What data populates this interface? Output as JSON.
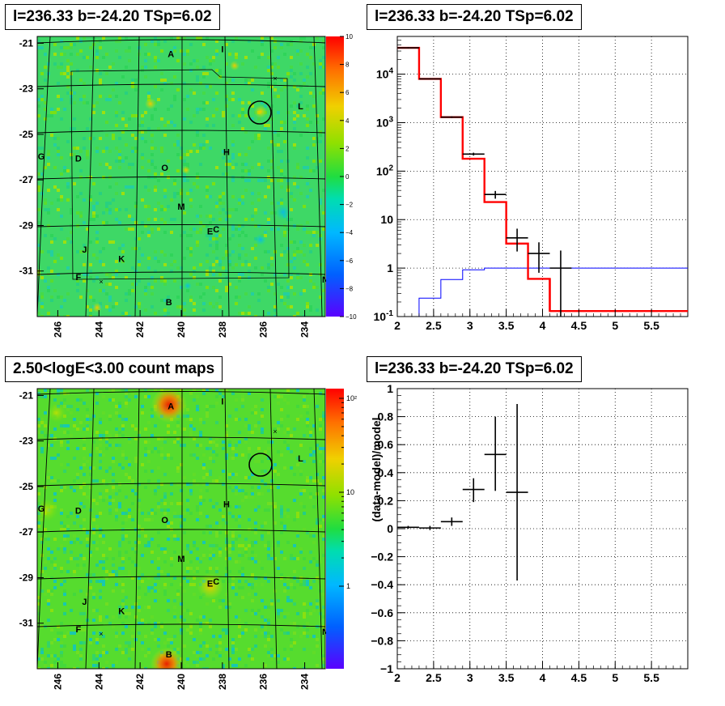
{
  "panels": {
    "tl_title": "l=236.33 b=-24.20 TSp=6.02",
    "tr_title": "l=236.33 b=-24.20 TSp=6.02",
    "bl_title": "2.50<logE<3.00 count maps",
    "br_title": "l=236.33 b=-24.20 TSp=6.02"
  },
  "maps": {
    "x_ticks": [
      "246",
      "244",
      "242",
      "240",
      "238",
      "236",
      "234"
    ],
    "y_ticks": [
      "-21",
      "-23",
      "-25",
      "-27",
      "-29",
      "-31"
    ],
    "source_labels": [
      "A",
      "I",
      "L",
      "H",
      "G",
      "D",
      "O",
      "M",
      "E",
      "C",
      "J",
      "K",
      "F",
      "N",
      "B"
    ],
    "residual_colorbar_ticks": [
      "10",
      "8",
      "6",
      "4",
      "2",
      "0",
      "−2",
      "−4",
      "−6",
      "−8",
      "−10"
    ],
    "count_colorbar_ticks": [
      "10²",
      "10",
      "1"
    ]
  },
  "chart_data": [
    {
      "type": "heatmap",
      "title": "l=236.33 b=-24.20 TSp=6.02",
      "xlim": [
        233,
        247
      ],
      "ylim": [
        -33,
        -20.7
      ],
      "x_ticks": [
        246,
        244,
        242,
        240,
        238,
        236,
        234
      ],
      "y_ticks": [
        -21,
        -23,
        -25,
        -27,
        -29,
        -31
      ],
      "colorbar": {
        "min": -10,
        "max": 10,
        "ticks": [
          10,
          8,
          6,
          4,
          2,
          0,
          -2,
          -4,
          -6,
          -8,
          -10
        ]
      },
      "circle": {
        "l": 236.0,
        "b": -24.1
      },
      "sources": [
        {
          "name": "A",
          "l": 240.5,
          "b": -21.6
        },
        {
          "name": "I",
          "l": 238.0,
          "b": -21.4
        },
        {
          "name": "L",
          "l": 234.2,
          "b": -23.9
        },
        {
          "name": "H",
          "l": 237.8,
          "b": -25.9
        },
        {
          "name": "G",
          "l": 246.8,
          "b": -26.1
        },
        {
          "name": "D",
          "l": 245.0,
          "b": -26.2
        },
        {
          "name": "O",
          "l": 240.8,
          "b": -26.6
        },
        {
          "name": "M",
          "l": 240.0,
          "b": -28.3
        },
        {
          "name": "E",
          "l": 238.6,
          "b": -29.4
        },
        {
          "name": "C",
          "l": 238.3,
          "b": -29.3
        },
        {
          "name": "J",
          "l": 244.7,
          "b": -30.2
        },
        {
          "name": "K",
          "l": 242.9,
          "b": -30.6
        },
        {
          "name": "F",
          "l": 245.0,
          "b": -31.4
        },
        {
          "name": "N",
          "l": 233.0,
          "b": -31.5
        },
        {
          "name": "B",
          "l": 240.6,
          "b": -32.5
        }
      ]
    },
    {
      "type": "line",
      "title": "l=236.33 b=-24.20 TSp=6.02",
      "xlim": [
        2,
        6
      ],
      "ylim": [
        0.1,
        60000
      ],
      "yscale": "log",
      "x_ticks": [
        2,
        2.5,
        3,
        3.5,
        4,
        4.5,
        5,
        5.5
      ],
      "y_ticks": [
        0.1,
        1,
        10,
        100,
        1000,
        10000
      ],
      "grid": true,
      "series": [
        {
          "color": "#ff0000",
          "kind": "step",
          "edges": [
            2.0,
            2.3,
            2.6,
            2.9,
            3.2,
            3.5,
            3.8,
            4.1,
            6.0
          ],
          "values": [
            35000,
            8000,
            1300,
            180,
            23,
            3.2,
            0.6,
            0.13
          ]
        },
        {
          "color": "#0000ff",
          "kind": "step",
          "edges": [
            2.3,
            2.6,
            2.9,
            3.2,
            6.0
          ],
          "values": [
            0.24,
            0.58,
            0.92,
            1.0
          ]
        },
        {
          "color": "#000000",
          "kind": "errorbar",
          "points": [
            {
              "x": 2.15,
              "y": 35000,
              "xerr": 0.15,
              "lo": 34000,
              "hi": 36000
            },
            {
              "x": 2.45,
              "y": 8000,
              "xerr": 0.15,
              "lo": 7800,
              "hi": 8200
            },
            {
              "x": 2.75,
              "y": 1300,
              "xerr": 0.15,
              "lo": 1250,
              "hi": 1350
            },
            {
              "x": 3.05,
              "y": 225,
              "xerr": 0.15,
              "lo": 210,
              "hi": 240
            },
            {
              "x": 3.35,
              "y": 33,
              "xerr": 0.15,
              "lo": 27,
              "hi": 39
            },
            {
              "x": 3.65,
              "y": 4.2,
              "xerr": 0.15,
              "lo": 2.2,
              "hi": 6.5
            },
            {
              "x": 3.95,
              "y": 2.0,
              "xerr": 0.15,
              "lo": 0.8,
              "hi": 3.4
            },
            {
              "x": 4.25,
              "y": 1.0,
              "xerr": 0.15,
              "lo": 0.1,
              "hi": 2.3
            }
          ]
        }
      ]
    },
    {
      "type": "heatmap",
      "title": "2.50<logE<3.00 count maps",
      "xlim": [
        233,
        247
      ],
      "ylim": [
        -33,
        -20.7
      ],
      "x_ticks": [
        246,
        244,
        242,
        240,
        238,
        236,
        234
      ],
      "y_ticks": [
        -21,
        -23,
        -25,
        -27,
        -29,
        -31
      ],
      "colorbar": {
        "scale": "log",
        "ticks": [
          "10²",
          "10",
          "1"
        ]
      },
      "circle": {
        "l": 236.0,
        "b": -24.1
      }
    },
    {
      "type": "scatter",
      "title": "l=236.33 b=-24.20 TSp=6.02",
      "ylabel": "(data-model)/model",
      "xlim": [
        2,
        6
      ],
      "ylim": [
        -1,
        1
      ],
      "x_ticks": [
        2,
        2.5,
        3,
        3.5,
        4,
        4.5,
        5,
        5.5
      ],
      "y_ticks": [
        -1,
        -0.8,
        -0.6,
        -0.4,
        -0.2,
        0,
        0.2,
        0.4,
        0.6,
        0.8,
        1
      ],
      "grid": true,
      "points": [
        {
          "x": 2.15,
          "y": 0.01,
          "xerr": 0.15,
          "lo": 0.0,
          "hi": 0.02
        },
        {
          "x": 2.45,
          "y": 0.005,
          "xerr": 0.15,
          "lo": -0.01,
          "hi": 0.02
        },
        {
          "x": 2.75,
          "y": 0.05,
          "xerr": 0.15,
          "lo": 0.02,
          "hi": 0.08
        },
        {
          "x": 3.05,
          "y": 0.28,
          "xerr": 0.15,
          "lo": 0.19,
          "hi": 0.36
        },
        {
          "x": 3.35,
          "y": 0.53,
          "xerr": 0.15,
          "lo": 0.27,
          "hi": 0.8
        },
        {
          "x": 3.65,
          "y": 0.26,
          "xerr": 0.15,
          "lo": -0.37,
          "hi": 0.89
        }
      ]
    }
  ]
}
